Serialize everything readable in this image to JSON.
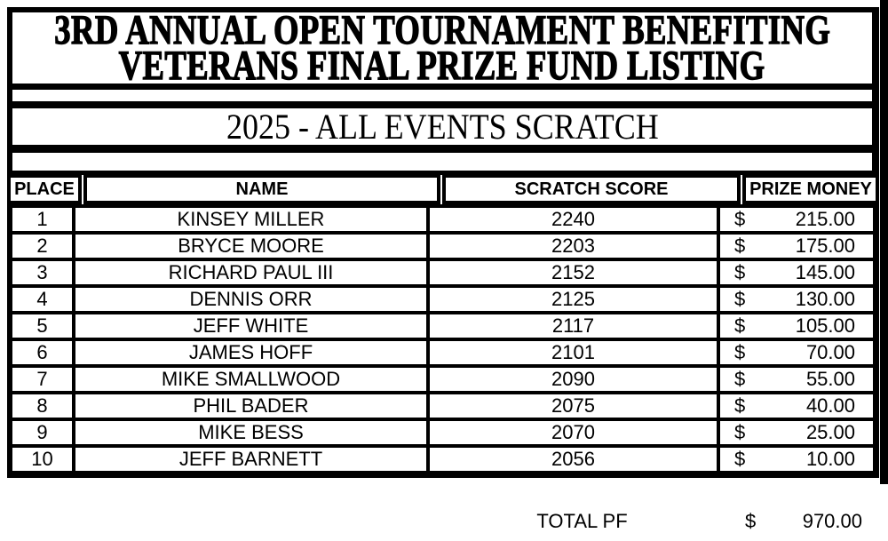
{
  "title": {
    "line1": "3RD ANNUAL OPEN TOURNAMENT BENEFITING",
    "line2": "VETERANS FINAL PRIZE FUND LISTING"
  },
  "subtitle": "2025 - ALL EVENTS SCRATCH",
  "table": {
    "headers": {
      "place": "PLACE",
      "name": "NAME",
      "score": "SCRATCH SCORE",
      "prize": "PRIZE MONEY"
    },
    "currency_symbol": "$",
    "rows": [
      {
        "place": "1",
        "name": "KINSEY MILLER",
        "score": "2240",
        "prize": "215.00"
      },
      {
        "place": "2",
        "name": "BRYCE MOORE",
        "score": "2203",
        "prize": "175.00"
      },
      {
        "place": "3",
        "name": "RICHARD PAUL III",
        "score": "2152",
        "prize": "145.00"
      },
      {
        "place": "4",
        "name": "DENNIS ORR",
        "score": "2125",
        "prize": "130.00"
      },
      {
        "place": "5",
        "name": "JEFF WHITE",
        "score": "2117",
        "prize": "105.00"
      },
      {
        "place": "6",
        "name": "JAMES HOFF",
        "score": "2101",
        "prize": "70.00"
      },
      {
        "place": "7",
        "name": "MIKE SMALLWOOD",
        "score": "2090",
        "prize": "55.00"
      },
      {
        "place": "8",
        "name": "PHIL BADER",
        "score": "2075",
        "prize": "40.00"
      },
      {
        "place": "9",
        "name": "MIKE BESS",
        "score": "2070",
        "prize": "25.00"
      },
      {
        "place": "10",
        "name": "JEFF BARNETT",
        "score": "2056",
        "prize": "10.00"
      }
    ]
  },
  "footer": {
    "total_label": "TOTAL PF",
    "currency_symbol": "$",
    "total_value": "970.00"
  },
  "colors": {
    "text": "#000000",
    "border": "#000000",
    "background": "#ffffff"
  }
}
